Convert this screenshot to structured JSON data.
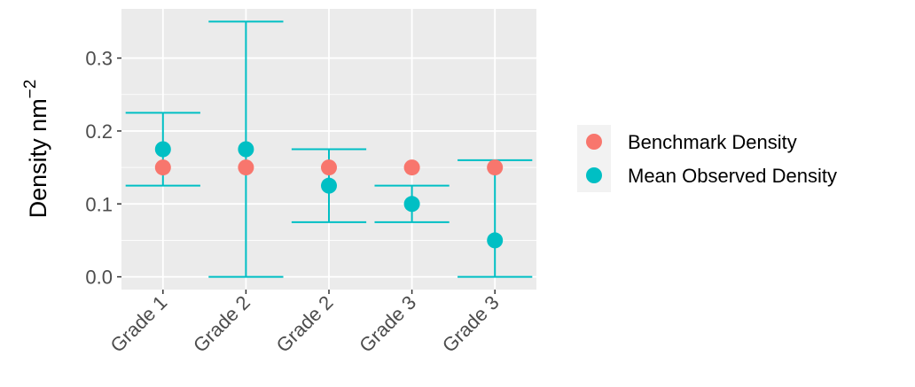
{
  "chart_data": {
    "type": "errorbar-point",
    "y_label": "Density nm",
    "y_label_superscript": "−2",
    "categories": [
      "Grade 1",
      "Grade 2",
      "Grade 2",
      "Grade 3",
      "Grade 3"
    ],
    "series": [
      {
        "name": "Benchmark Density",
        "color": "#F8766D",
        "values": [
          0.15,
          0.15,
          0.15,
          0.15,
          0.15
        ]
      },
      {
        "name": "Mean Observed Density",
        "color": "#00BFC4",
        "values": [
          0.175,
          0.175,
          0.125,
          0.1,
          0.05
        ],
        "lower": [
          0.125,
          0,
          0.075,
          0.075,
          0
        ],
        "upper": [
          0.225,
          0.35,
          0.175,
          0.125,
          0.16
        ]
      }
    ],
    "ylim": [
      -0.0175,
      0.3675
    ],
    "yticks": [
      {
        "value": 0,
        "label": "0.0"
      },
      0.1,
      0.2,
      0.3
    ],
    "grid": true,
    "legend": "right"
  }
}
